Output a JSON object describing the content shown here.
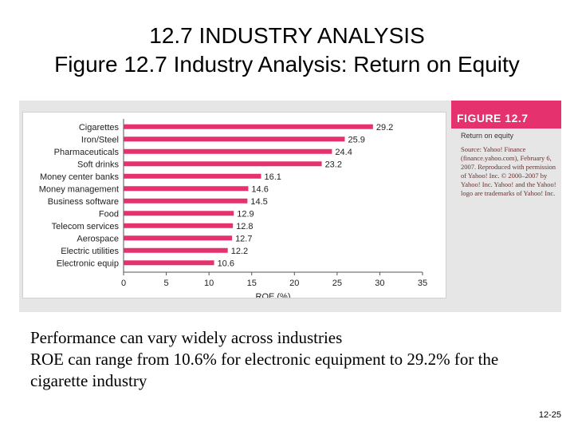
{
  "slide": {
    "title_line1": "12.7  INDUSTRY ANALYSIS",
    "title_line2": "Figure 12.7 Industry Analysis: Return on Equity",
    "figure_label": "FIGURE 12.7",
    "figure_subtitle": "Return on equity",
    "figure_source": "Source: Yahoo! Finance (finance.yahoo.com), February 6, 2007. Reproduced with permission of Yahoo! Inc. © 2000–2007 by Yahoo! Inc. Yahoo! and the Yahoo! logo are trademarks of Yahoo! Inc.",
    "caption_line1": "Performance can vary widely across industries",
    "caption_line2": "ROE can range from 10.6% for electronic equipment to 29.2% for the cigarette industry",
    "slide_number": "12-25"
  },
  "colors": {
    "bar": "#e6316f",
    "header": "#e6316f",
    "panel": "#e6e6e6"
  },
  "chart_data": {
    "type": "bar",
    "orientation": "horizontal",
    "categories": [
      "Cigarettes",
      "Iron/Steel",
      "Pharmaceuticals",
      "Soft drinks",
      "Money center banks",
      "Money management",
      "Business software",
      "Food",
      "Telecom services",
      "Aerospace",
      "Electric utilities",
      "Electronic equip"
    ],
    "values": [
      29.2,
      25.9,
      24.4,
      23.2,
      16.1,
      14.6,
      14.5,
      12.9,
      12.8,
      12.7,
      12.2,
      10.6
    ],
    "xlabel": "ROE (%)",
    "ylabel": "",
    "xlim": [
      0,
      35
    ],
    "xticks": [
      0,
      5,
      10,
      15,
      20,
      25,
      30,
      35
    ],
    "grid": false,
    "legend": "none"
  }
}
